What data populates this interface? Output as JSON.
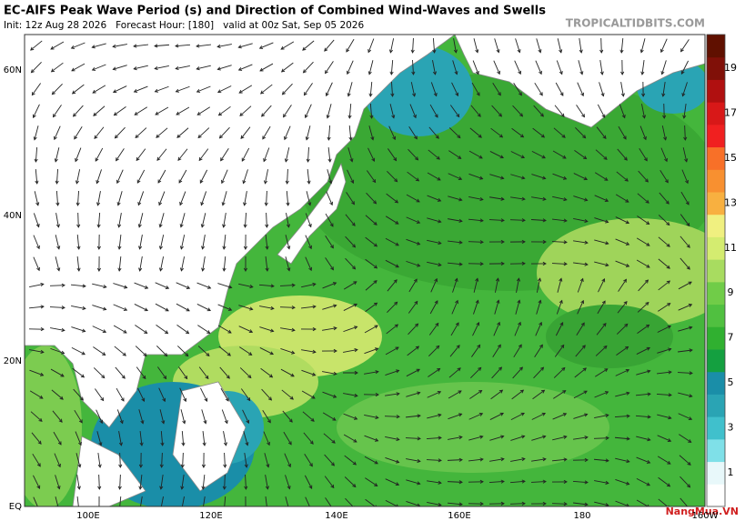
{
  "header": {
    "title": "EC-AIFS Peak Wave Period (s) and Direction of Combined Wind-Waves and Swells",
    "info": "Init: 12z Aug 28 2026   Forecast Hour: [180]   valid at 00z Sat, Sep 05 2026",
    "site": "TROPICALTIDBITS.COM"
  },
  "map": {
    "lat_labels": [
      "60N",
      "40N",
      "20N",
      "EQ"
    ],
    "lon_labels": [
      "100E",
      "120E",
      "140E",
      "160E",
      "180",
      "160W"
    ]
  },
  "colorbar": {
    "labels": [
      "1",
      "3",
      "5",
      "7",
      "9",
      "11",
      "13",
      "15",
      "17",
      "19"
    ],
    "colors": [
      "#ffffff",
      "#e8f8fa",
      "#7fe0e8",
      "#40c0cc",
      "#2aa4b4",
      "#1a8ea8",
      "#14a040",
      "#30b030",
      "#50c040",
      "#70cc48",
      "#a8dc60",
      "#d4ec70",
      "#f0f080",
      "#f8b040",
      "#f89030",
      "#f87028",
      "#f02020",
      "#d81818",
      "#b01010",
      "#801008",
      "#601000"
    ]
  },
  "watermark": "NangMua.VN"
}
